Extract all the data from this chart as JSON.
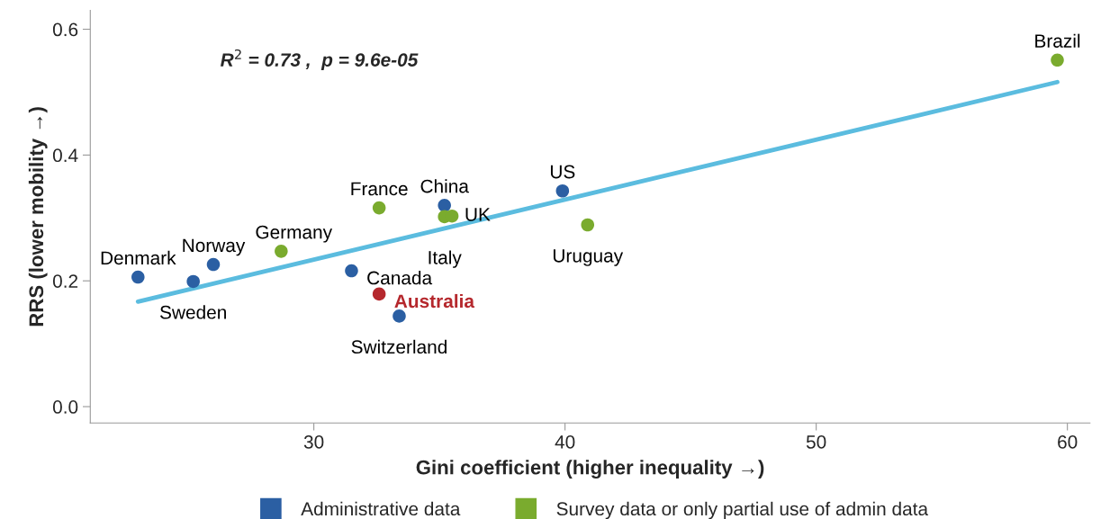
{
  "chart_data": {
    "type": "scatter",
    "xlabel": "Gini coefficient (higher inequality →)",
    "ylabel": "RRS (lower mobility →)",
    "xlim": [
      21.1,
      60.9
    ],
    "ylim": [
      -0.026,
      0.63
    ],
    "xticks": [
      30,
      40,
      50,
      60
    ],
    "yticks": [
      {
        "value": 0.0,
        "label": "0.0"
      },
      0.2,
      0.4,
      0.6
    ],
    "grid": false,
    "legend": "bottom",
    "marker": "circle",
    "series": [
      {
        "name": "Administrative data",
        "color": "#2b5fa3",
        "x": [
          23.0,
          25.2,
          26.0,
          31.5,
          33.4,
          35.2,
          39.9
        ],
        "values": [
          0.206,
          0.199,
          0.226,
          0.216,
          0.144,
          0.32,
          0.343
        ]
      },
      {
        "name": "Survey data or only partial use of admin data",
        "color": "#7aab2e",
        "x": [
          28.7,
          32.6,
          35.2,
          35.5,
          40.9,
          59.6
        ],
        "values": [
          0.247,
          0.316,
          0.302,
          0.303,
          0.289,
          0.551
        ]
      },
      {
        "color": "#b5282d",
        "x": [
          32.6
        ],
        "values": [
          0.179
        ]
      },
      {
        "type": "line",
        "marker": "none",
        "color": "#5bbcdf",
        "x": [
          23.0,
          59.6
        ],
        "values": [
          0.167,
          0.516
        ]
      }
    ],
    "annotations": [
      {
        "text": "Denmark",
        "x": 23.0,
        "y": 0.206
      },
      {
        "text": "Sweden",
        "x": 25.2,
        "y": 0.199
      },
      {
        "text": "Norway",
        "x": 26.0,
        "y": 0.226
      },
      {
        "text": "Germany",
        "x": 28.7,
        "y": 0.247
      },
      {
        "text": "France",
        "x": 32.6,
        "y": 0.316
      },
      {
        "text": "Canada",
        "x": 31.5,
        "y": 0.216
      },
      {
        "text": "Australia",
        "x": 32.6,
        "y": 0.179
      },
      {
        "text": "Switzerland",
        "x": 33.4,
        "y": 0.144
      },
      {
        "text": "China",
        "x": 35.2,
        "y": 0.32
      },
      {
        "text": "Italy",
        "x": 35.2,
        "y": 0.302
      },
      {
        "text": "UK",
        "x": 35.5,
        "y": 0.303
      },
      {
        "text": "US",
        "x": 39.9,
        "y": 0.343
      },
      {
        "text": "Uruguay",
        "x": 40.9,
        "y": 0.289
      },
      {
        "text": "Brazil",
        "x": 59.6,
        "y": 0.551
      },
      "R$^{2}$ = 0.73 ,  p = 9.6e-05"
    ]
  }
}
